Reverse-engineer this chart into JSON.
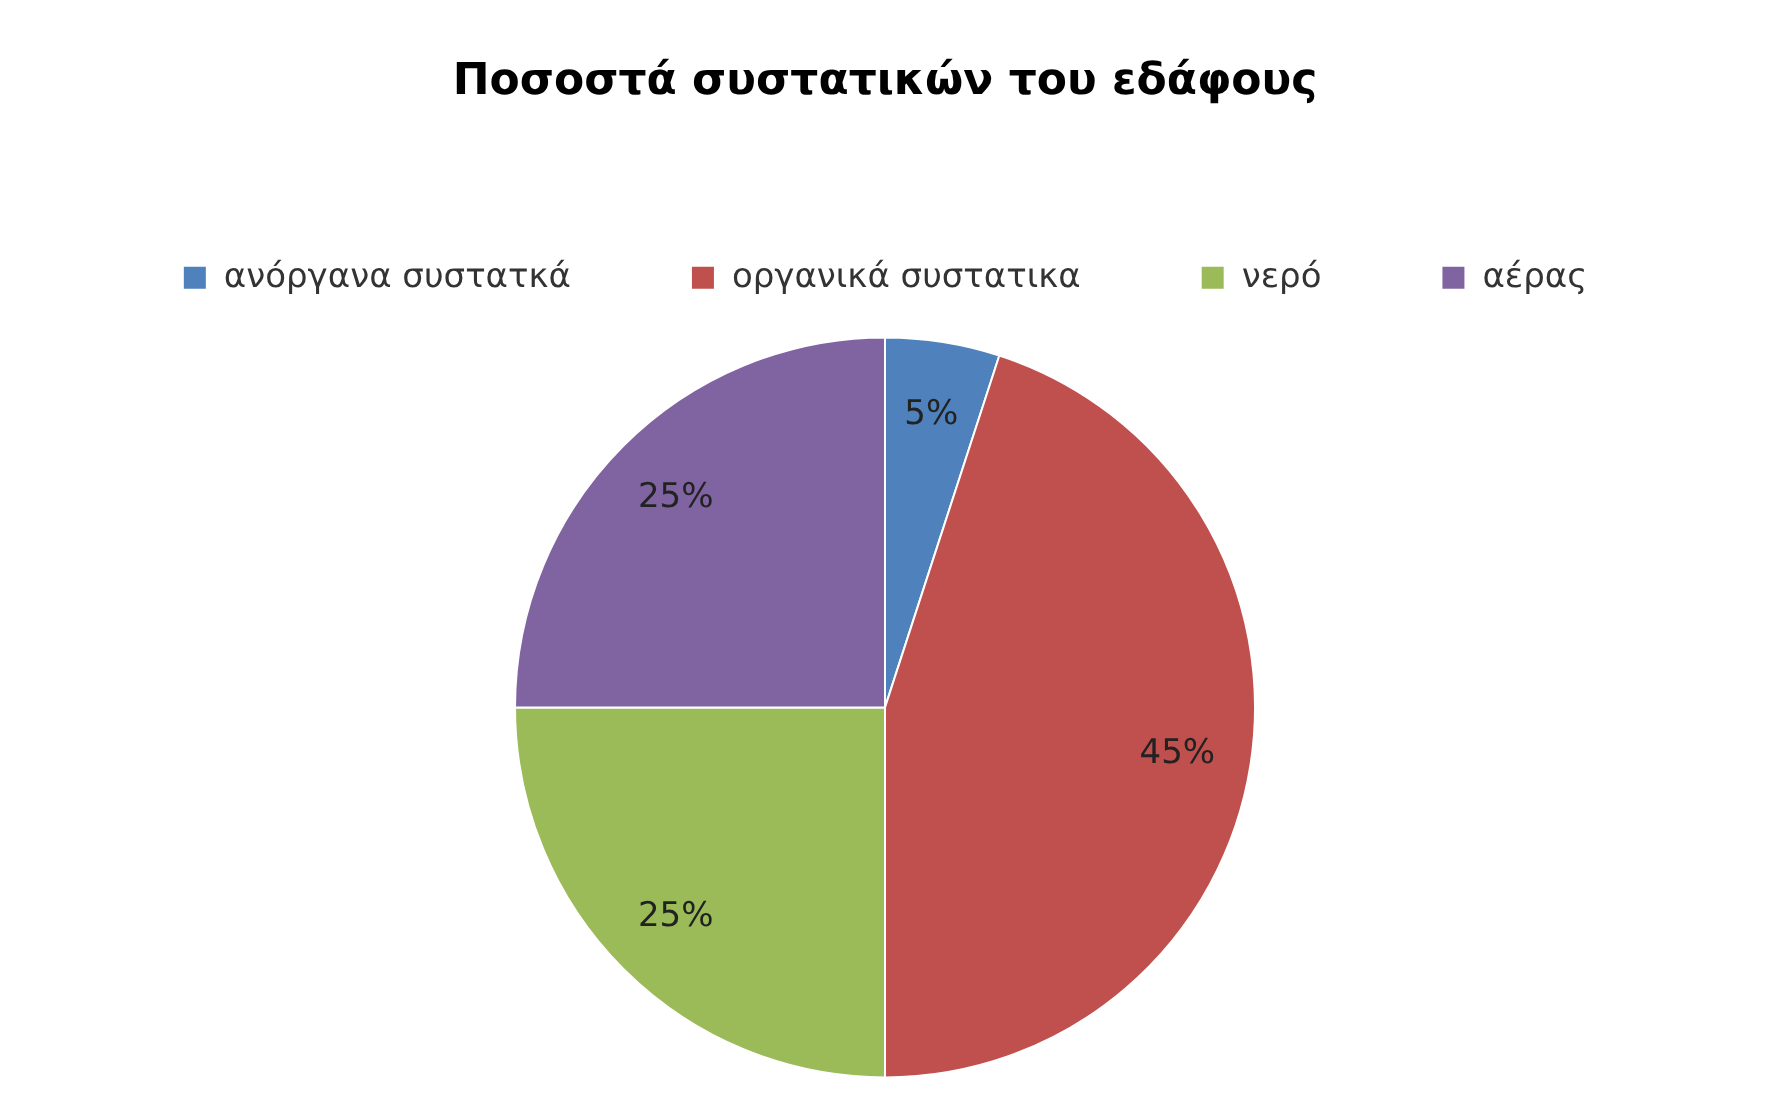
{
  "chart_data": {
    "type": "pie",
    "title": "Ποσοστά συστατικών του εδάφους",
    "categories": [
      "ανόργανα συστατκά",
      "οργανικά συστατικα",
      "νερό",
      "αέρας"
    ],
    "values": [
      5,
      45,
      25,
      25
    ],
    "value_labels": [
      "5%",
      "45%",
      "25%",
      "25%"
    ],
    "colors": [
      "#4f81bd",
      "#c0504d",
      "#9bbb59",
      "#8064a2"
    ],
    "legend": "top"
  }
}
